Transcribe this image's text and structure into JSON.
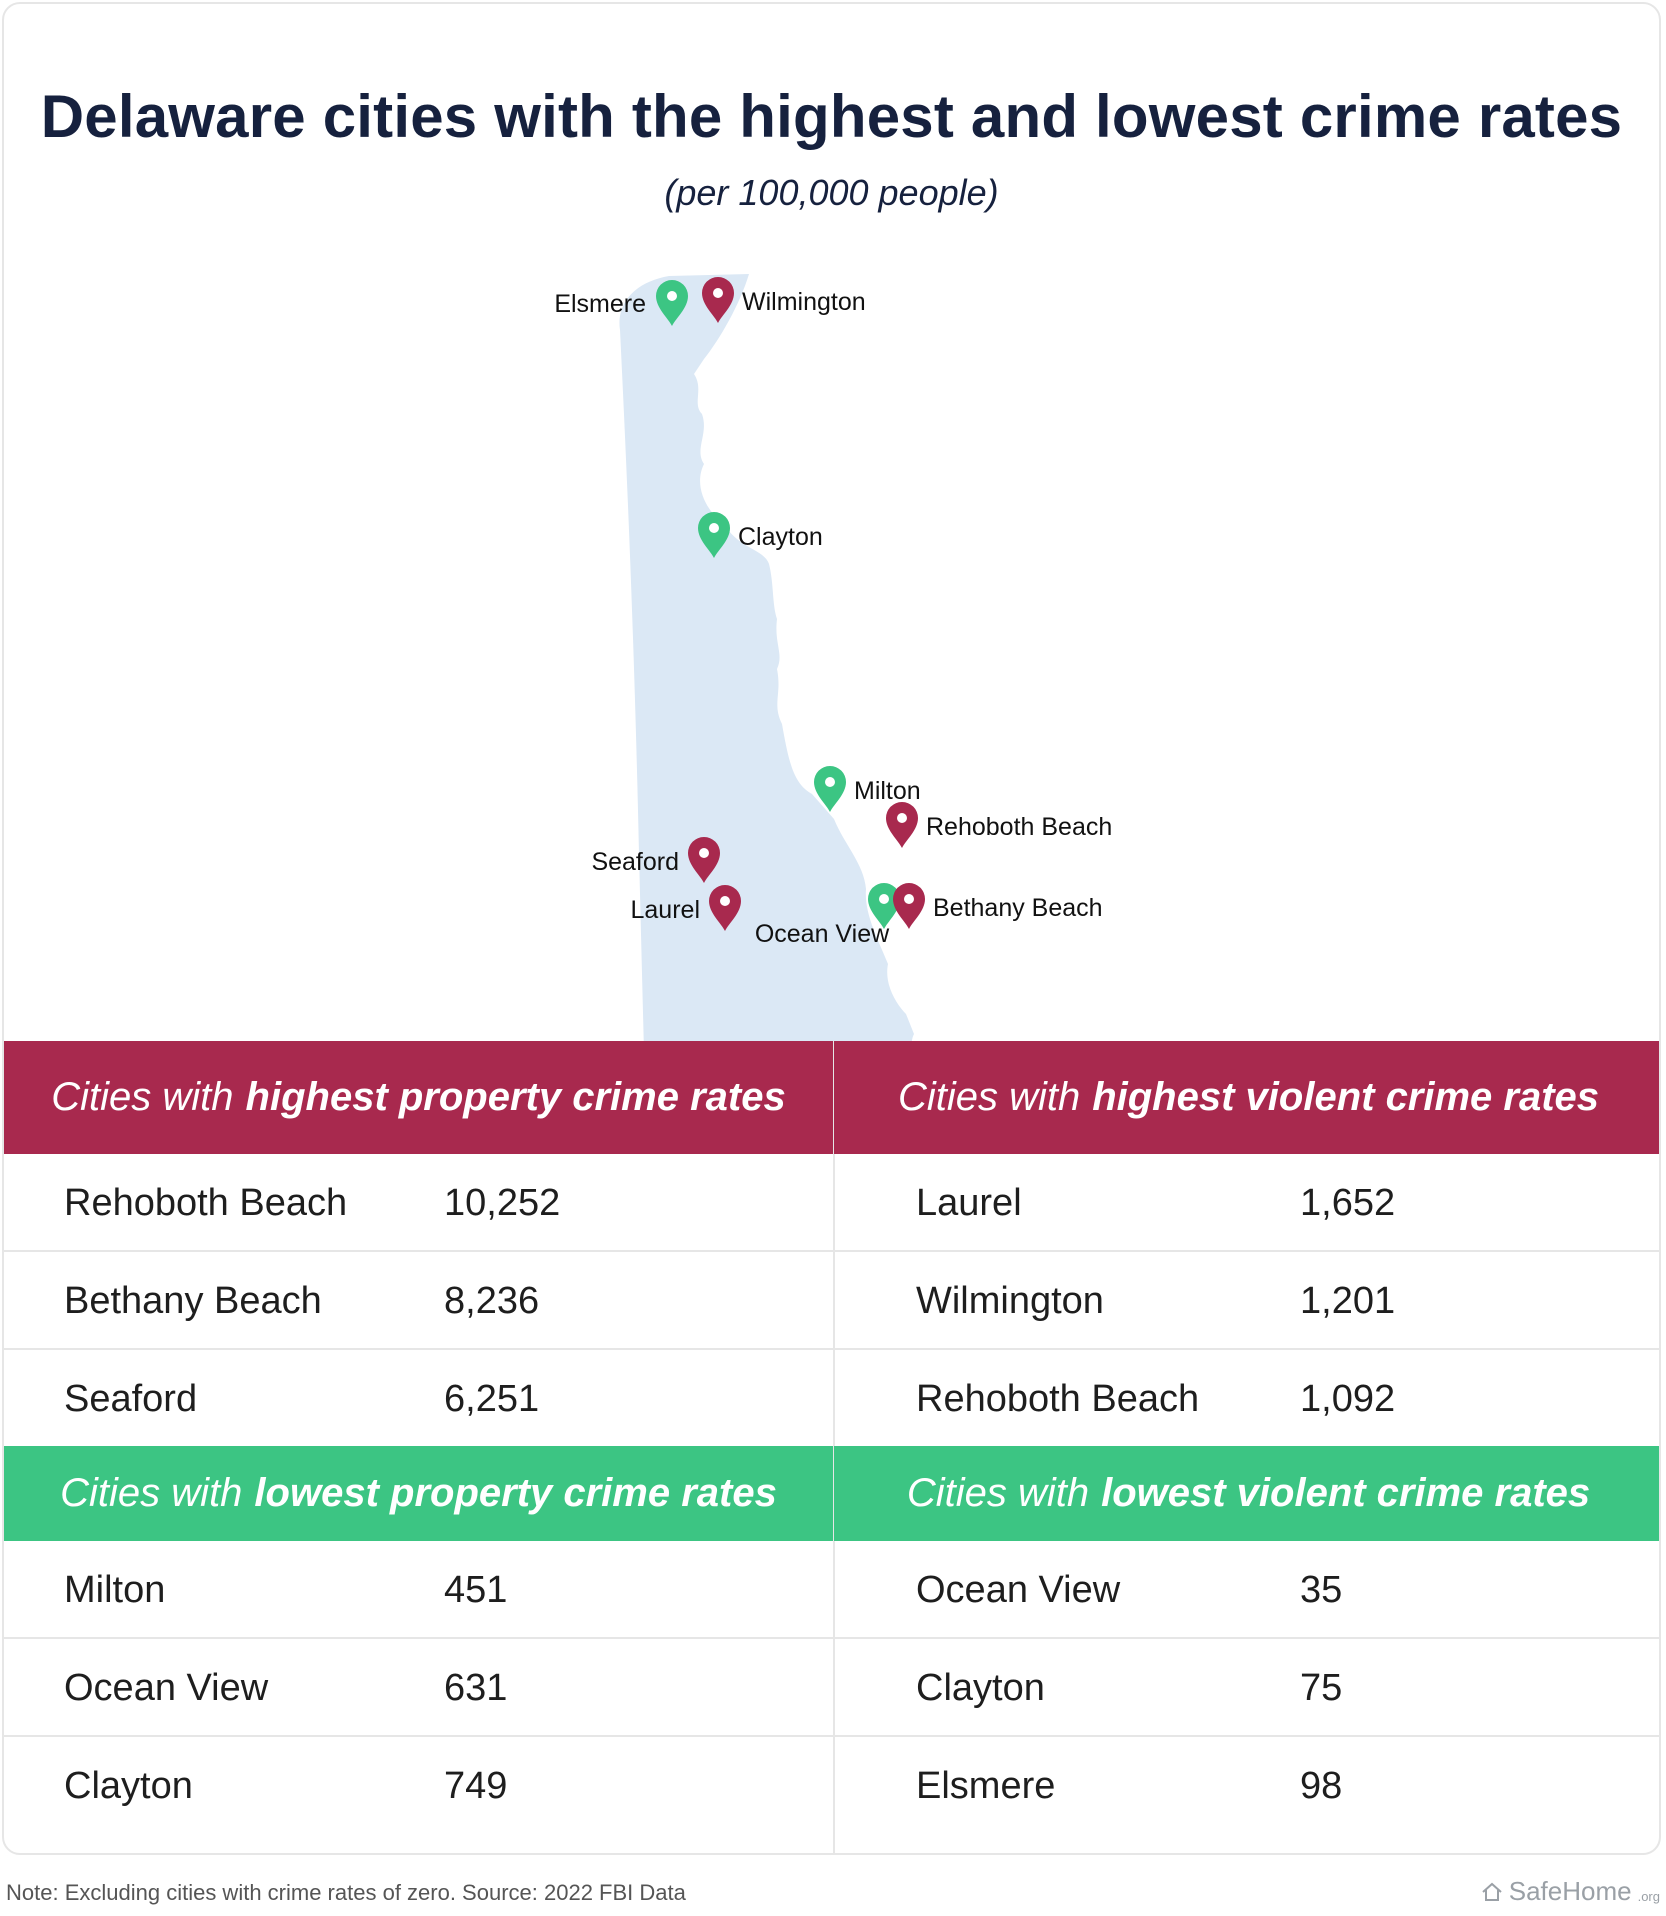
{
  "title": "Delaware cities with the highest and lowest crime rates",
  "subtitle": "(per 100,000 people)",
  "colors": {
    "high": "#a8294e",
    "low": "#3cc583",
    "land": "#dbe8f5"
  },
  "map": {
    "pins": [
      {
        "name": "Elsmere",
        "type": "low"
      },
      {
        "name": "Wilmington",
        "type": "high"
      },
      {
        "name": "Clayton",
        "type": "low"
      },
      {
        "name": "Milton",
        "type": "low"
      },
      {
        "name": "Rehoboth Beach",
        "type": "high"
      },
      {
        "name": "Seaford",
        "type": "high"
      },
      {
        "name": "Laurel",
        "type": "high"
      },
      {
        "name": "Ocean View",
        "type": "low"
      },
      {
        "name": "Bethany Beach",
        "type": "high"
      }
    ]
  },
  "tables": {
    "high_property": {
      "prefix": "Cities with",
      "emphasis": "highest property crime rates",
      "rows": [
        {
          "city": "Rehoboth Beach",
          "value": "10,252"
        },
        {
          "city": "Bethany Beach",
          "value": "8,236"
        },
        {
          "city": "Seaford",
          "value": "6,251"
        }
      ]
    },
    "high_violent": {
      "prefix": "Cities with",
      "emphasis": "highest violent crime rates",
      "rows": [
        {
          "city": "Laurel",
          "value": "1,652"
        },
        {
          "city": "Wilmington",
          "value": "1,201"
        },
        {
          "city": "Rehoboth Beach",
          "value": "1,092"
        }
      ]
    },
    "low_property": {
      "prefix": "Cities with",
      "emphasis": "lowest property crime rates",
      "rows": [
        {
          "city": "Milton",
          "value": "451"
        },
        {
          "city": "Ocean View",
          "value": "631"
        },
        {
          "city": "Clayton",
          "value": "749"
        }
      ]
    },
    "low_violent": {
      "prefix": "Cities with",
      "emphasis": "lowest violent crime rates",
      "rows": [
        {
          "city": "Ocean View",
          "value": "35"
        },
        {
          "city": "Clayton",
          "value": "75"
        },
        {
          "city": "Elsmere",
          "value": "98"
        }
      ]
    }
  },
  "footer": {
    "note": "Note: Excluding cities with crime rates of zero. Source: 2022 FBI Data",
    "brand": "SafeHome",
    "brand_suffix": ".org",
    "brand_icon": "house-icon"
  }
}
